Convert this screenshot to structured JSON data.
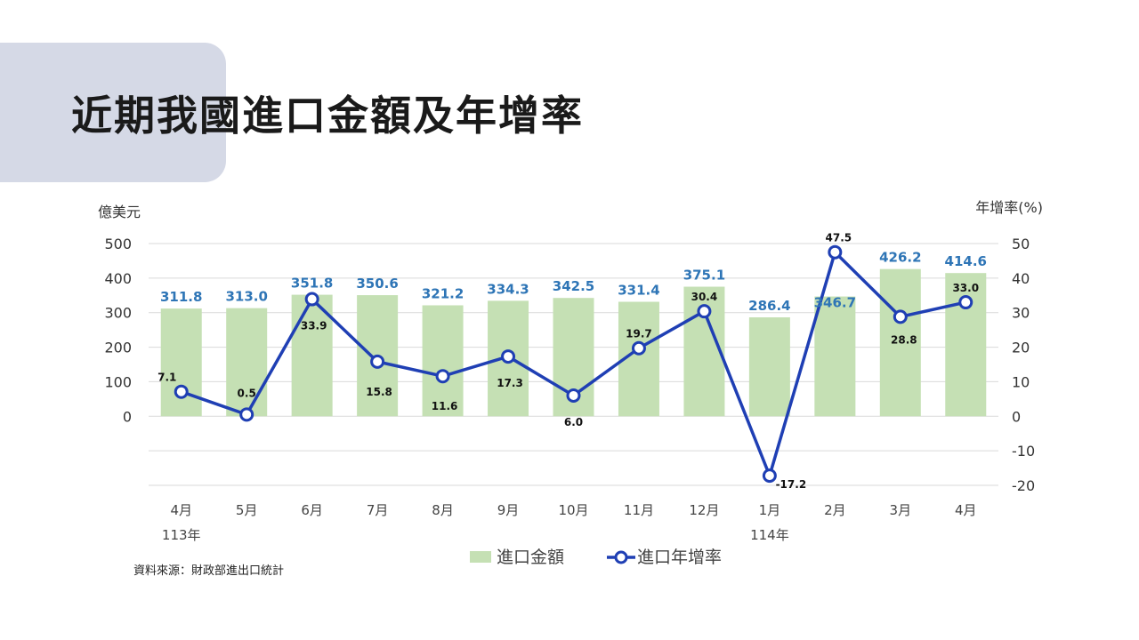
{
  "slide": {
    "title": "近期我國進口金額及年增率",
    "source": "資料來源：財政部進出口統計"
  },
  "chart_data": {
    "type": "bar",
    "title": "",
    "categories": [
      "4月",
      "5月",
      "6月",
      "7月",
      "8月",
      "9月",
      "10月",
      "11月",
      "12月",
      "1月",
      "2月",
      "3月",
      "4月"
    ],
    "year_labels": [
      {
        "label": "113年",
        "at": 0
      },
      {
        "label": "114年",
        "at": 9
      }
    ],
    "y_left": {
      "label": "億美元",
      "ticks": [
        0,
        100,
        200,
        300,
        400,
        500
      ],
      "ylim": [
        -200,
        500
      ]
    },
    "y_right": {
      "label": "年增率(%)",
      "ticks": [
        -20,
        -10,
        0,
        10,
        20,
        30,
        40,
        50
      ],
      "ylim": [
        -20,
        50
      ]
    },
    "grid": true,
    "legend_position": "bottom",
    "series": [
      {
        "name": "進口金額",
        "type": "bar",
        "axis": "left",
        "color": "#c5e0b4",
        "label_color": "#2e75b6",
        "values": [
          311.8,
          313.0,
          351.8,
          350.6,
          321.2,
          334.3,
          342.5,
          331.4,
          375.1,
          286.4,
          346.7,
          426.2,
          414.6
        ],
        "labels": [
          "311.8",
          "313.0",
          "351.8",
          "350.6",
          "321.2",
          "334.3",
          "342.5",
          "331.4",
          "375.1",
          "286.4",
          "346.7",
          "426.2",
          "414.6"
        ]
      },
      {
        "name": "進口年增率",
        "type": "line",
        "axis": "right",
        "color": "#1f3fb4",
        "values": [
          7.1,
          0.5,
          33.9,
          15.8,
          11.6,
          17.3,
          6.0,
          19.7,
          30.4,
          -17.2,
          47.5,
          28.8,
          33.0
        ],
        "labels": [
          "7.1",
          "0.5",
          "33.9",
          "15.8",
          "11.6",
          "17.3",
          "6.0",
          "19.7",
          "30.4",
          "-17.2",
          "47.5",
          "28.8",
          "33.0"
        ]
      }
    ]
  }
}
